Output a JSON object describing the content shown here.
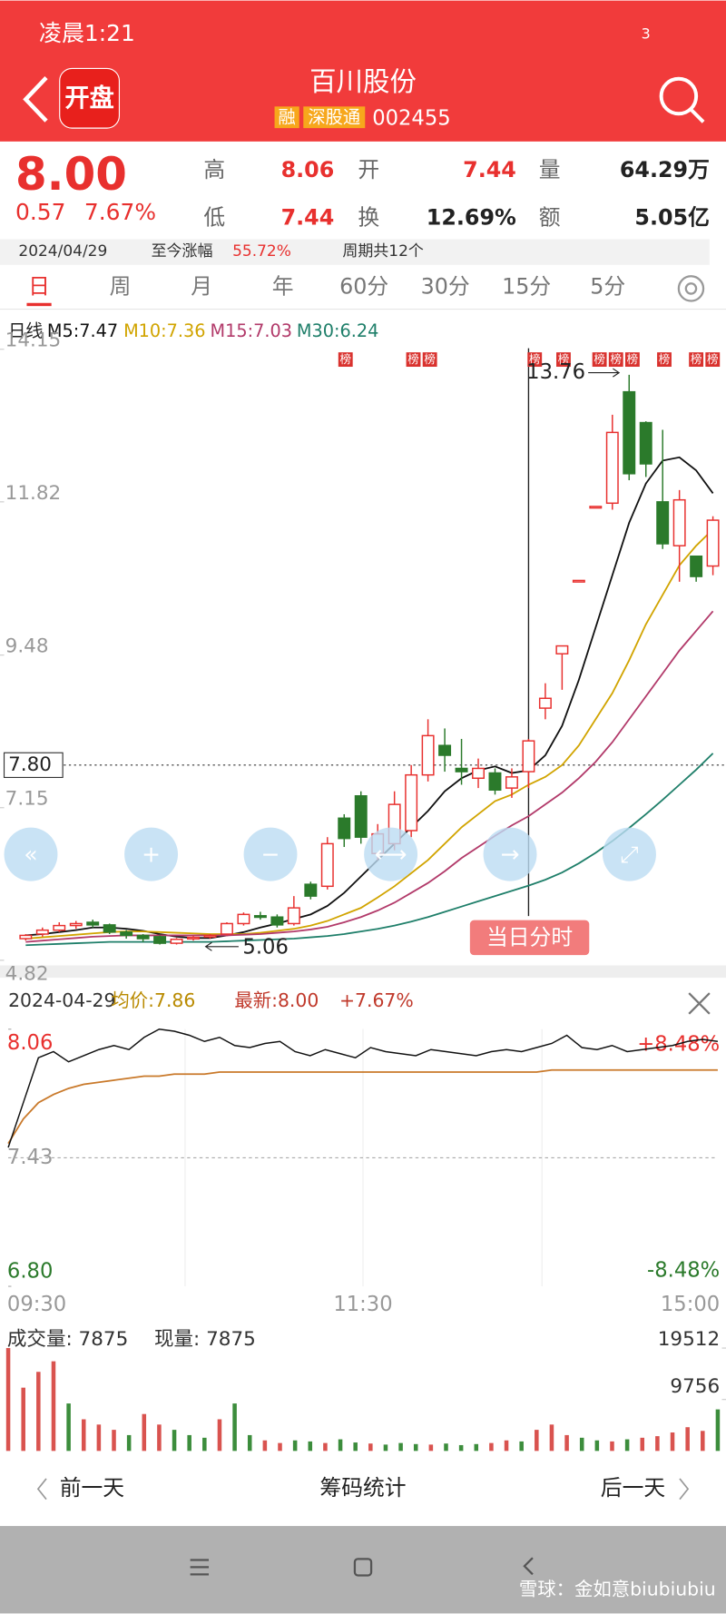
{
  "status_bar": {
    "time": "凌晨1:21",
    "battery": "3"
  },
  "header": {
    "logo": "开盘",
    "name": "百川股份",
    "tags": [
      "融",
      "深股通"
    ],
    "code": "002455"
  },
  "quote": {
    "price": "8.00",
    "change": "0.57",
    "change_pct": "7.67%",
    "fields": [
      {
        "label": "高",
        "value": "8.06"
      },
      {
        "label": "开",
        "value": "7.44"
      },
      {
        "label": "量",
        "value": "64.29万"
      },
      {
        "label": "低",
        "value": "7.44"
      },
      {
        "label": "换",
        "value": "12.69%"
      },
      {
        "label": "额",
        "value": "5.05亿"
      }
    ],
    "date": "2024/04/29",
    "gain_label": "至今涨幅",
    "gain": "55.72%",
    "period": "周期共12个"
  },
  "tabs": [
    "日",
    "周",
    "月",
    "年",
    "60分",
    "30分",
    "15分",
    "5分"
  ],
  "kline": {
    "type": "candlestick",
    "legend": [
      "日线",
      "M5:7.47",
      "M10:7.36",
      "M15:7.03",
      "M30:6.24"
    ],
    "ylim": [
      4.82,
      14.15
    ],
    "yticks": [
      4.82,
      7.15,
      9.48,
      11.82,
      14.15
    ],
    "current_line": {
      "value": 7.8,
      "label": "7.80"
    },
    "high_mark": 13.76,
    "low_mark": 5.06,
    "badge": "榜",
    "button": "当日分时",
    "up_color": "#e8302e",
    "down_color": "#2b7a2b",
    "open": [
      5.15,
      5.22,
      5.28,
      5.35,
      5.4,
      5.36,
      5.25,
      5.2,
      5.18,
      5.08,
      5.15,
      5.18,
      5.22,
      5.38,
      5.5,
      5.48,
      5.38,
      5.98,
      5.95,
      6.99,
      7.33,
      6.45,
      6.6,
      6.8,
      7.65,
      8.1,
      7.75,
      7.6,
      7.68,
      7.45,
      7.7,
      8.67,
      9.5,
      10.62,
      11.75,
      11.8,
      13.5,
      13.03,
      11.82,
      11.15,
      10.99,
      10.84
    ],
    "high": [
      5.22,
      5.32,
      5.4,
      5.42,
      5.44,
      5.38,
      5.28,
      5.22,
      5.2,
      5.16,
      5.19,
      5.22,
      5.4,
      5.55,
      5.56,
      5.52,
      5.8,
      6.02,
      6.7,
      7.05,
      7.4,
      6.9,
      7.4,
      7.8,
      8.5,
      8.36,
      8.2,
      7.9,
      7.75,
      7.75,
      8.2,
      9.05,
      9.62,
      10.62,
      11.75,
      13.15,
      13.76,
      13.05,
      12.92,
      12.0,
      11.0,
      11.6
    ],
    "low": [
      5.12,
      5.18,
      5.25,
      5.3,
      5.32,
      5.22,
      5.15,
      5.1,
      5.06,
      5.06,
      5.12,
      5.15,
      5.2,
      5.35,
      5.44,
      5.32,
      5.35,
      5.75,
      5.9,
      6.55,
      6.6,
      6.35,
      6.5,
      6.7,
      7.55,
      7.7,
      7.5,
      7.45,
      7.35,
      7.3,
      7.45,
      8.5,
      8.95,
      10.62,
      11.75,
      11.7,
      12.15,
      12.2,
      11.1,
      10.6,
      10.6,
      10.7
    ],
    "close": [
      5.2,
      5.28,
      5.35,
      5.38,
      5.36,
      5.25,
      5.2,
      5.15,
      5.08,
      5.14,
      5.17,
      5.2,
      5.38,
      5.52,
      5.48,
      5.36,
      5.62,
      5.8,
      6.6,
      6.68,
      6.7,
      6.75,
      7.2,
      7.65,
      8.25,
      7.95,
      7.7,
      7.75,
      7.42,
      7.62,
      8.17,
      8.82,
      9.62,
      10.62,
      11.75,
      12.88,
      12.25,
      12.4,
      11.18,
      11.85,
      10.68,
      11.54
    ],
    "ma": [
      {
        "name": "M5",
        "color": "#111111",
        "values": [
          5.2,
          5.22,
          5.25,
          5.28,
          5.32,
          5.32,
          5.3,
          5.27,
          5.22,
          5.18,
          5.16,
          5.16,
          5.2,
          5.25,
          5.32,
          5.38,
          5.45,
          5.52,
          5.65,
          5.85,
          6.1,
          6.35,
          6.6,
          6.85,
          7.1,
          7.4,
          7.6,
          7.72,
          7.78,
          7.68,
          7.72,
          7.95,
          8.4,
          9.1,
          9.9,
          10.7,
          11.5,
          12.1,
          12.45,
          12.5,
          12.3,
          11.95
        ]
      },
      {
        "name": "M10",
        "color": "#d1a400",
        "values": [
          5.15,
          5.17,
          5.19,
          5.21,
          5.23,
          5.25,
          5.26,
          5.26,
          5.25,
          5.24,
          5.23,
          5.22,
          5.22,
          5.22,
          5.24,
          5.27,
          5.3,
          5.35,
          5.42,
          5.52,
          5.62,
          5.78,
          5.95,
          6.15,
          6.35,
          6.6,
          6.85,
          7.05,
          7.25,
          7.35,
          7.5,
          7.62,
          7.8,
          8.1,
          8.5,
          8.9,
          9.4,
          9.95,
          10.4,
          10.85,
          11.15,
          11.4
        ]
      },
      {
        "name": "M15",
        "color": "#b23a6a",
        "values": [
          5.1,
          5.12,
          5.14,
          5.16,
          5.18,
          5.19,
          5.2,
          5.2,
          5.2,
          5.2,
          5.2,
          5.2,
          5.2,
          5.21,
          5.22,
          5.24,
          5.26,
          5.29,
          5.33,
          5.4,
          5.48,
          5.58,
          5.7,
          5.85,
          6.0,
          6.18,
          6.38,
          6.55,
          6.72,
          6.88,
          7.02,
          7.2,
          7.38,
          7.6,
          7.85,
          8.15,
          8.5,
          8.85,
          9.2,
          9.55,
          9.85,
          10.15
        ]
      },
      {
        "name": "M30",
        "color": "#1f7f6a",
        "values": [
          5.05,
          5.06,
          5.07,
          5.08,
          5.09,
          5.1,
          5.1,
          5.1,
          5.1,
          5.1,
          5.1,
          5.1,
          5.11,
          5.12,
          5.13,
          5.14,
          5.15,
          5.17,
          5.19,
          5.22,
          5.26,
          5.3,
          5.35,
          5.41,
          5.48,
          5.56,
          5.64,
          5.72,
          5.8,
          5.88,
          5.96,
          6.05,
          6.16,
          6.3,
          6.46,
          6.64,
          6.84,
          7.05,
          7.27,
          7.5,
          7.73,
          7.98
        ]
      }
    ]
  },
  "intraday": {
    "type": "line",
    "date": "2024-04-29",
    "avg_label": "均价:7.86",
    "latest_label": "最新:8.00",
    "change": "+7.67%",
    "ylim": [
      6.8,
      8.06
    ],
    "yticks": [
      {
        "value": 6.8,
        "label": "6.80"
      },
      7.43,
      8.06
    ],
    "pct_labels": [
      "+8.48%",
      "-8.48%"
    ],
    "times": [
      "09:30",
      "11:30",
      "15:00"
    ],
    "price": [
      7.48,
      7.7,
      7.92,
      7.95,
      7.9,
      7.93,
      7.96,
      7.98,
      7.96,
      8.02,
      8.06,
      8.05,
      8.03,
      8.0,
      8.02,
      7.98,
      7.97,
      7.99,
      8.0,
      7.95,
      7.93,
      7.96,
      7.94,
      7.92,
      7.97,
      7.95,
      7.94,
      7.93,
      7.96,
      7.95,
      7.94,
      7.93,
      7.95,
      7.96,
      7.95,
      7.97,
      7.99,
      8.03,
      7.97,
      7.96,
      7.98,
      7.95,
      7.96,
      7.97,
      7.98,
      8.0,
      8.01,
      8.0
    ],
    "avg": [
      7.5,
      7.62,
      7.7,
      7.74,
      7.77,
      7.79,
      7.8,
      7.81,
      7.82,
      7.83,
      7.83,
      7.84,
      7.84,
      7.84,
      7.85,
      7.85,
      7.85,
      7.85,
      7.85,
      7.85,
      7.85,
      7.85,
      7.85,
      7.85,
      7.85,
      7.85,
      7.85,
      7.85,
      7.85,
      7.85,
      7.85,
      7.85,
      7.85,
      7.85,
      7.85,
      7.85,
      7.86,
      7.86,
      7.86,
      7.86,
      7.86,
      7.86,
      7.86,
      7.86,
      7.86,
      7.86,
      7.86,
      7.86
    ],
    "price_color": "#111111",
    "avg_color": "#c9792a"
  },
  "volume": {
    "type": "bar",
    "label": "成交量: 7875",
    "current_label": "现量: 7875",
    "ylim": [
      0,
      19512
    ],
    "yticks": [
      9756,
      19512
    ],
    "values": [
      19512,
      12000,
      15000,
      17000,
      9000,
      6000,
      5000,
      4000,
      3000,
      7000,
      5000,
      4000,
      3000,
      2500,
      6000,
      9000,
      3000,
      2000,
      1500,
      2000,
      1800,
      1500,
      2200,
      1600,
      1400,
      1200,
      1500,
      1300,
      1200,
      1400,
      1100,
      1300,
      1500,
      2000,
      1800,
      4000,
      5000,
      3000,
      2500,
      2000,
      1800,
      2200,
      2500,
      2800,
      3500,
      4500,
      3800,
      7875
    ]
  },
  "footer": {
    "prev": "前一天",
    "stats": "筹码统计",
    "next": "后一天"
  },
  "watermark": "雪球：金如意biubiubiu"
}
